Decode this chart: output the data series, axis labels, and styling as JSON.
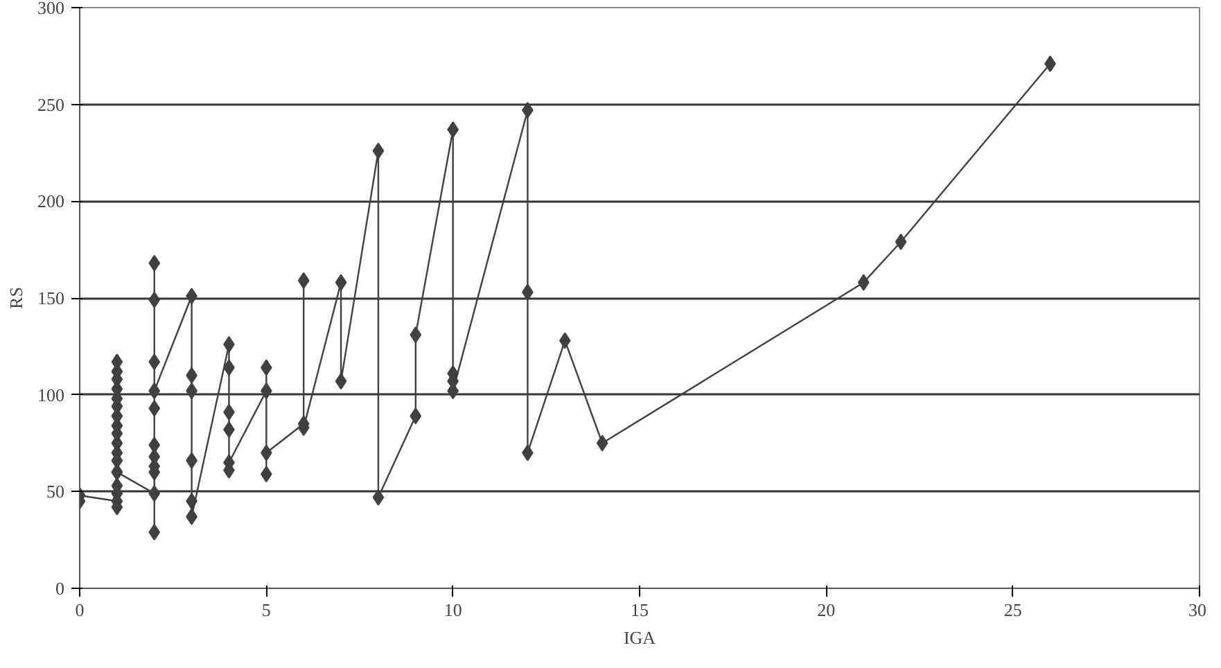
{
  "chart_data": {
    "type": "line",
    "xlabel": "IGA",
    "ylabel": "RS",
    "x": [
      0,
      0,
      1,
      1,
      1,
      1,
      1,
      1,
      1,
      1,
      1,
      1,
      1,
      1,
      1,
      1,
      1,
      1,
      1,
      1,
      2,
      2,
      2,
      2,
      2,
      2,
      2,
      2,
      2,
      2,
      2,
      3,
      3,
      3,
      3,
      3,
      3,
      4,
      4,
      4,
      4,
      4,
      4,
      5,
      5,
      5,
      5,
      6,
      6,
      6,
      7,
      7,
      8,
      8,
      9,
      9,
      10,
      10,
      10,
      10,
      12,
      12,
      12,
      13,
      14,
      21,
      22,
      26
    ],
    "series": [
      {
        "color": "#404040",
        "values": [
          45,
          48,
          45,
          42,
          49,
          53,
          60,
          66,
          70,
          75,
          80,
          84,
          89,
          94,
          98,
          103,
          108,
          112,
          117,
          60,
          49,
          29,
          60,
          63,
          68,
          74,
          93,
          117,
          149,
          168,
          102,
          151,
          110,
          102,
          66,
          45,
          37,
          126,
          114,
          91,
          82,
          61,
          65,
          102,
          114,
          59,
          70,
          85,
          159,
          83,
          158,
          107,
          226,
          47,
          89,
          131,
          237,
          111,
          107,
          102,
          247,
          153,
          70,
          128,
          75,
          158,
          179,
          271
        ]
      }
    ],
    "xlim": [
      0,
      30
    ],
    "xticks": [
      0,
      5,
      10,
      15,
      20,
      25,
      30
    ],
    "ylim": [
      0,
      300
    ],
    "yticks": [
      0,
      50,
      100,
      150,
      200,
      250,
      300
    ],
    "grid": "y",
    "marker": "diamond",
    "line_style": "solid"
  }
}
